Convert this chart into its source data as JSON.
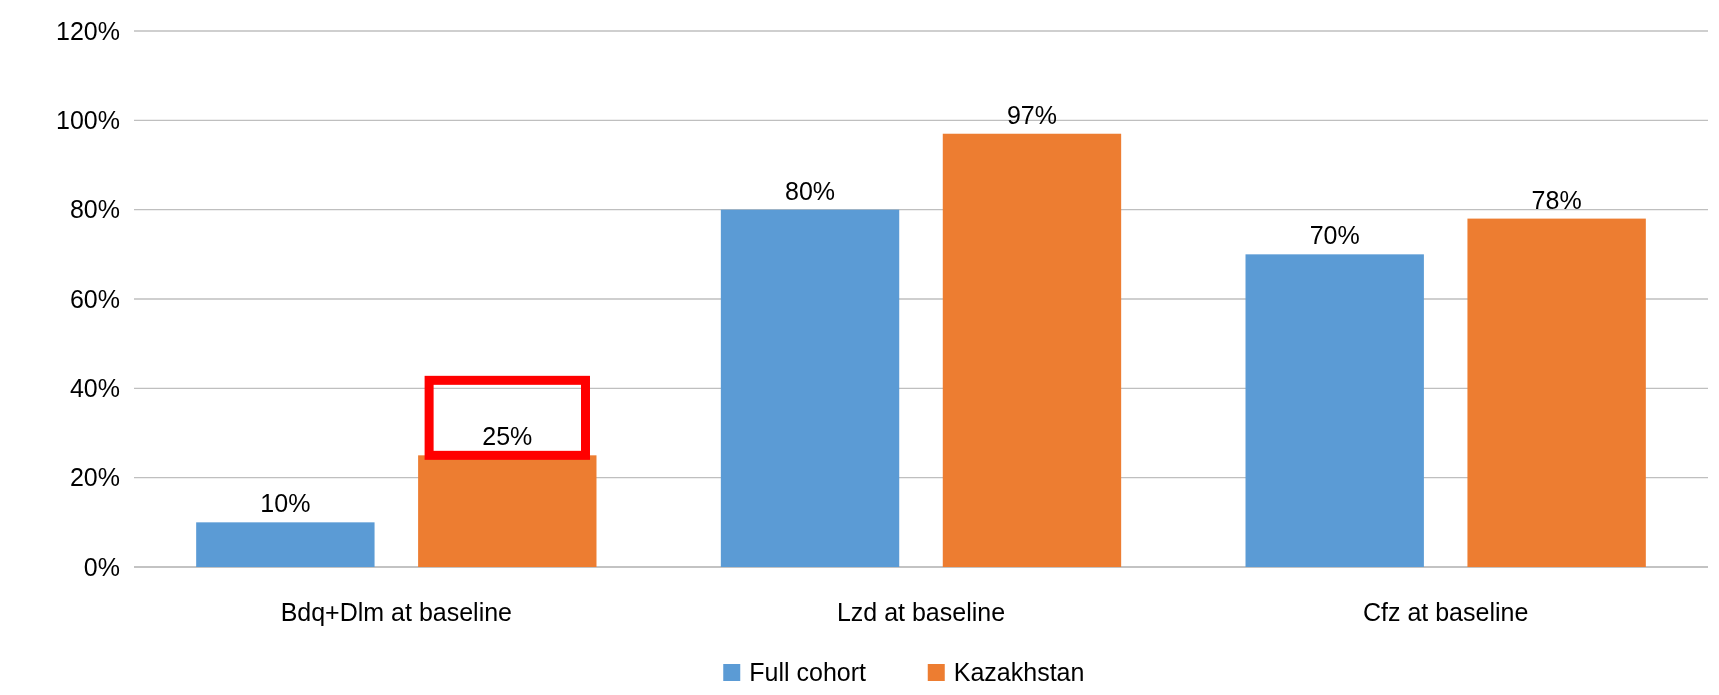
{
  "chart_data": {
    "type": "bar",
    "categories": [
      "Bdq+Dlm at baseline",
      "Lzd at baseline",
      "Cfz at baseline"
    ],
    "series": [
      {
        "name": "Full cohort",
        "color": "#5b9bd5",
        "values": [
          10,
          80,
          70
        ],
        "value_labels": [
          "10%",
          "80%",
          "70%"
        ]
      },
      {
        "name": "Kazakhstan",
        "color": "#ed7d31",
        "values": [
          25,
          97,
          78
        ],
        "value_labels": [
          "25%",
          "97%",
          "78%"
        ]
      }
    ],
    "ylim": [
      0,
      120
    ],
    "yticks": [
      {
        "value": 0,
        "label": "0%"
      },
      {
        "value": 20,
        "label": "20%"
      },
      {
        "value": 40,
        "label": "40%"
      },
      {
        "value": 60,
        "label": "60%"
      },
      {
        "value": 80,
        "label": "80%"
      },
      {
        "value": 100,
        "label": "100%"
      },
      {
        "value": 120,
        "label": "120%"
      }
    ],
    "grid": "y",
    "legend": "bottom"
  }
}
